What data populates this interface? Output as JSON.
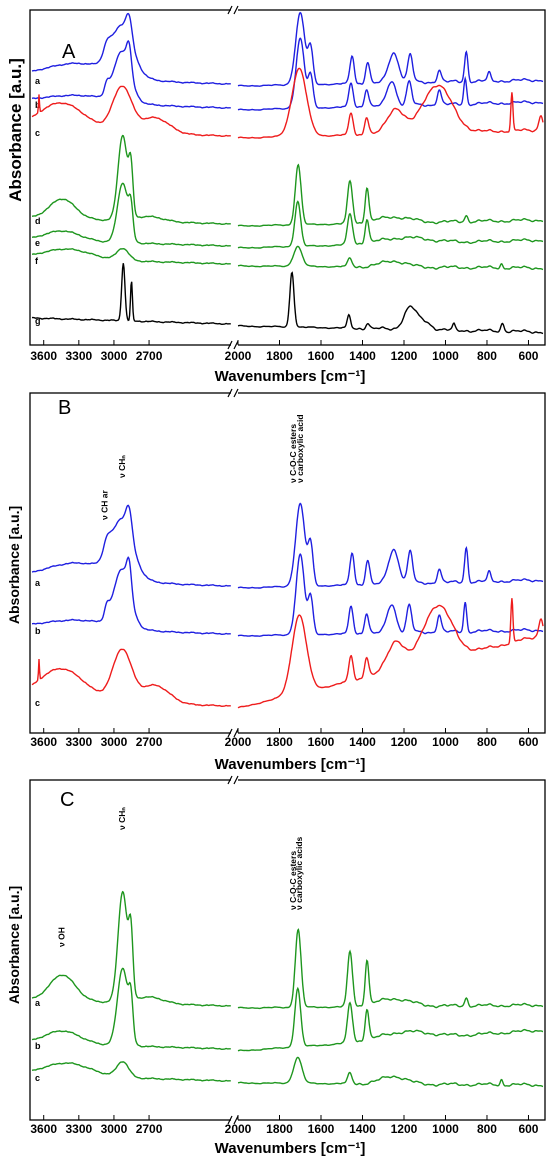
{
  "chart_data": [
    {
      "type": "line",
      "panel_label": "A",
      "xlabel": "Wavenumbers [cm⁻¹]",
      "ylabel": "Absorbance [a.u.]",
      "x_ticks": [
        "3600",
        "3300",
        "3000",
        "2700",
        "2000",
        "1800",
        "1600",
        "1400",
        "1200",
        "1000",
        "800",
        "600"
      ],
      "xlim_left": [
        3700,
        2000
      ],
      "xlim_right": [
        2000,
        530
      ],
      "colors": {
        "blue": "#1f1fe0",
        "red": "#ee1c1c",
        "green": "#1e961e",
        "black": "#000000"
      },
      "series": [
        {
          "name": "a",
          "color": "blue"
        },
        {
          "name": "b",
          "color": "blue"
        },
        {
          "name": "c",
          "color": "red"
        },
        {
          "name": "d",
          "color": "green"
        },
        {
          "name": "e",
          "color": "green"
        },
        {
          "name": "f",
          "color": "green"
        },
        {
          "name": "g",
          "color": "black"
        }
      ],
      "annotations": []
    },
    {
      "type": "line",
      "panel_label": "B",
      "xlabel": "Wavenumbers [cm⁻¹]",
      "ylabel": "Absorbance [a.u.]",
      "x_ticks": [
        "3600",
        "3300",
        "3000",
        "2700",
        "2000",
        "1800",
        "1600",
        "1400",
        "1200",
        "1000",
        "800",
        "600"
      ],
      "xlim_left": [
        3700,
        2000
      ],
      "xlim_right": [
        2000,
        530
      ],
      "series": [
        {
          "name": "a",
          "color": "blue"
        },
        {
          "name": "b",
          "color": "blue"
        },
        {
          "name": "c",
          "color": "red"
        }
      ],
      "annotations": [
        {
          "text": "ν CH ar",
          "x": 3080
        },
        {
          "text": "ν CHₙ",
          "x": 2930
        },
        {
          "text": "ν C-O-C esters",
          "x": 1735
        },
        {
          "text": "ν carboxylic acid",
          "x": 1700
        }
      ]
    },
    {
      "type": "line",
      "panel_label": "C",
      "xlabel": "Wavenumbers [cm⁻¹]",
      "ylabel": "Absorbance [a.u.]",
      "x_ticks": [
        "3600",
        "3300",
        "3000",
        "2700",
        "2000",
        "1800",
        "1600",
        "1400",
        "1200",
        "1000",
        "800",
        "600"
      ],
      "xlim_left": [
        3700,
        2000
      ],
      "xlim_right": [
        2000,
        530
      ],
      "series": [
        {
          "name": "a",
          "color": "green"
        },
        {
          "name": "b",
          "color": "green"
        },
        {
          "name": "c",
          "color": "green"
        }
      ],
      "annotations": [
        {
          "text": "ν OH",
          "x": 3450
        },
        {
          "text": "ν CHₙ",
          "x": 2930
        },
        {
          "text": "ν C-O-C esters",
          "x": 1735
        },
        {
          "text": "ν carboxylic acids",
          "x": 1705
        }
      ]
    }
  ]
}
